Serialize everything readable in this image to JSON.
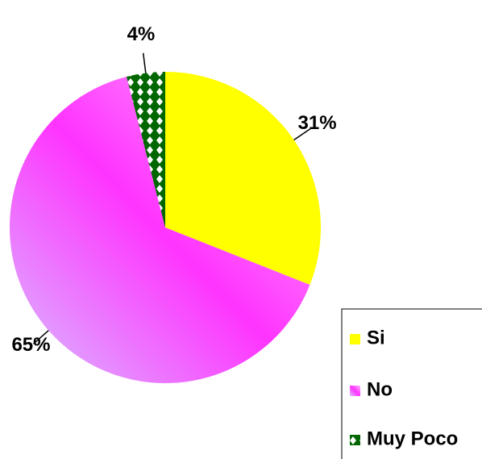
{
  "chart_data": {
    "type": "pie",
    "categories": [
      "Si",
      "No",
      "Muy Poco"
    ],
    "values": [
      31,
      65,
      4
    ],
    "value_labels": [
      "31%",
      "65%",
      "4%"
    ],
    "colors": [
      "#ffff00",
      "#ff33ff",
      "#006600"
    ],
    "legend": "bottom-right"
  }
}
